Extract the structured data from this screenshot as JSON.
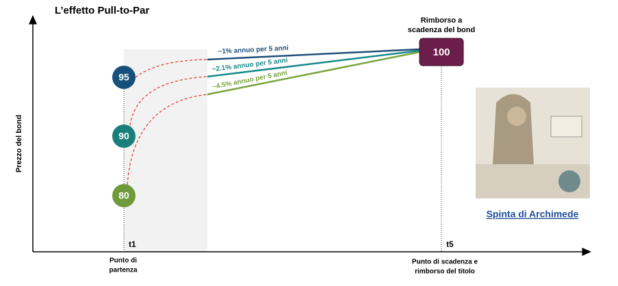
{
  "title": "L’effetto Pull-to-Par",
  "y_axis_label": "Prezzo del bond",
  "start_prices": [
    95,
    90,
    80
  ],
  "paths": [
    "~1% annuo per 5 anni",
    "~2.1% annuo per 5 anni",
    "~4.5% annuo per 5 anni"
  ],
  "redemption": {
    "label_lines": [
      "Rimborso a",
      "scadenza del bond"
    ],
    "value": 100
  },
  "time_points": [
    {
      "label": "t1",
      "caption_lines": [
        "Punto di",
        "partenza"
      ]
    },
    {
      "label": "t5",
      "caption_lines": [
        "Punto di scadenza e",
        "rimborso del titolo"
      ]
    }
  ],
  "image_caption": "Spinta di Archimede"
}
